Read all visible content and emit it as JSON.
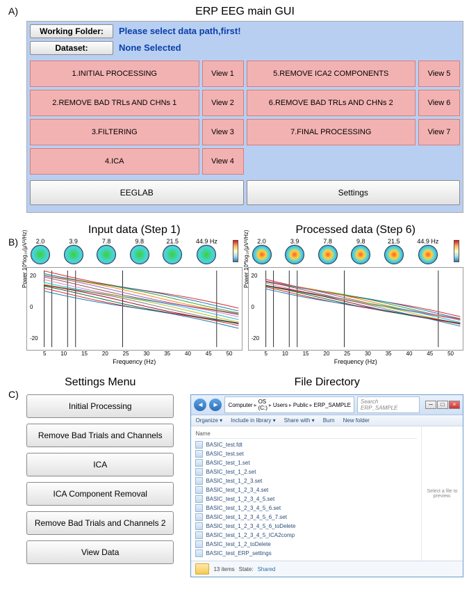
{
  "panels": {
    "a": "A)",
    "b": "B)",
    "c": "C)"
  },
  "gui": {
    "title": "ERP EEG main GUI",
    "working_folder_label": "Working Folder:",
    "working_folder_value": "Please select data path,first!",
    "dataset_label": "Dataset:",
    "dataset_value": "None Selected",
    "pipeline": [
      {
        "step": "1.INITIAL PROCESSING",
        "view": "View 1"
      },
      {
        "step": "2.REMOVE BAD TRLs AND CHNs 1",
        "view": "View 2"
      },
      {
        "step": "3.FILTERING",
        "view": "View 3"
      },
      {
        "step": "4.ICA",
        "view": "View 4"
      },
      {
        "step": "5.REMOVE ICA2 COMPONENTS",
        "view": "View 5"
      },
      {
        "step": "6.REMOVE BAD TRLs AND CHNs 2",
        "view": "View 6"
      },
      {
        "step": "7.FINAL PROCESSING",
        "view": "View 7"
      }
    ],
    "footer": {
      "eeglab": "EEGLAB",
      "settings": "Settings"
    },
    "colors": {
      "frame_bg": "#b9cff2",
      "step_bg": "#f3b2b2",
      "step_border": "#d07e7e",
      "button_grad_top": "#fdfdfd",
      "button_grad_bot": "#e2e2e2"
    }
  },
  "charts": {
    "input_title": "Input data (Step 1)",
    "processed_title": "Processed data (Step 6)",
    "topomap_freqs": [
      "2.0",
      "3.9",
      "7.8",
      "9.8",
      "21.5",
      "44.9 Hz"
    ],
    "ylabel": "Power 10*log₁₀(μV²/Hz)",
    "xlabel": "Frequency (Hz)",
    "yticks": [
      "20",
      "0",
      "-20"
    ],
    "xticks": [
      "5",
      "10",
      "15",
      "20",
      "25",
      "30",
      "35",
      "40",
      "45",
      "50"
    ],
    "xlim": [
      2,
      50
    ],
    "ylim_input": [
      -30,
      25
    ],
    "ylim_proc": [
      -25,
      15
    ],
    "line_colors": [
      "#d62728",
      "#1f77b4",
      "#2ca02c",
      "#ff7f0e",
      "#9467bd",
      "#8c564b",
      "#e377c2",
      "#17becf",
      "#bcbd22",
      "#7f7f7f",
      "#a50026",
      "#006837"
    ],
    "marker_freqs_x": [
      2.0,
      3.9,
      7.8,
      9.8,
      21.5,
      44.9
    ],
    "colorbar_colors": [
      "#d7191c",
      "#fdae61",
      "#ffffbf",
      "#abd9e9",
      "#2c7bb6"
    ]
  },
  "settings_menu": {
    "title": "Settings Menu",
    "items": [
      "Initial Processing",
      "Remove Bad Trials and Channels",
      "ICA",
      "ICA Component Removal",
      "Remove Bad Trials and Channels 2",
      "View Data"
    ]
  },
  "file_explorer": {
    "title": "File Directory",
    "breadcrumb": [
      "Computer",
      "OS (C:)",
      "Users",
      "Public",
      "ERP_SAMPLE"
    ],
    "search_placeholder": "Search ERP_SAMPLE",
    "toolbar": [
      "Organize ▾",
      "Include in library ▾",
      "Share with ▾",
      "Burn",
      "New folder"
    ],
    "column_header": "Name",
    "preview_text": "Select a file to preview.",
    "files": [
      "BASIC_test.fdt",
      "BASIC_test.set",
      "BASIC_test_1.set",
      "BASIC_test_1_2.set",
      "BASIC_test_1_2_3.set",
      "BASIC_test_1_2_3_4.set",
      "BASIC_test_1_2_3_4_5.set",
      "BASIC_test_1_2_3_4_5_6.set",
      "BASIC_test_1_2_3_4_5_6_7.set",
      "BASIC_test_1_2_3_4_5_6_toDelete",
      "BASIC_test_1_2_3_4_5_ICA2comp",
      "BASIC_test_1_2_toDelete",
      "BASIC_test_ERP_settings"
    ],
    "status": {
      "count": "13 items",
      "state_label": "State:",
      "state_value": "Shared"
    },
    "colors": {
      "window_border": "#6b9bd1",
      "titlebar_grad_top": "#e9f1fb",
      "titlebar_grad_bot": "#cfe0f5"
    }
  }
}
